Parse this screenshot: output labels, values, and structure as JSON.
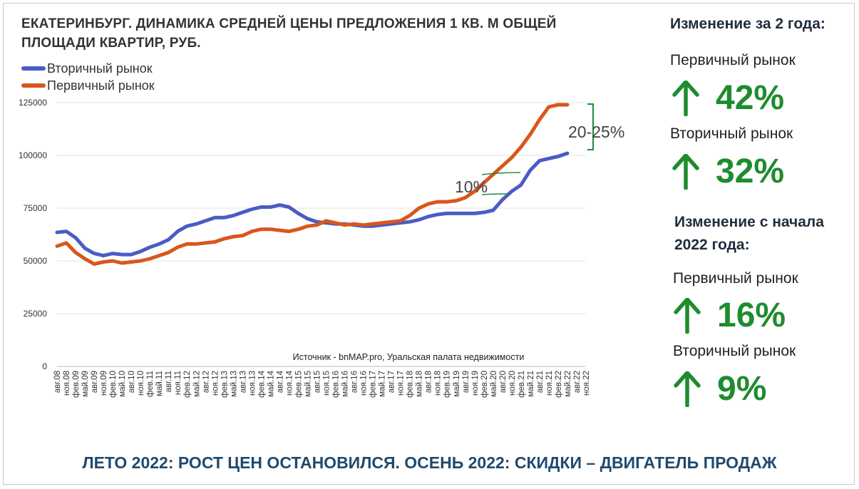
{
  "chart_data": {
    "type": "line",
    "title": "ЕКАТЕРИНБУРГ. ДИНАМИКА СРЕДНЕЙ ЦЕНЫ ПРЕДЛОЖЕНИЯ 1 КВ. М ОБЩЕЙ ПЛОЩАДИ КВАРТИР,  РУБ.",
    "xlabel": "",
    "ylabel": "",
    "ylim": [
      0,
      125000
    ],
    "yticks": [
      0,
      25000,
      50000,
      75000,
      100000,
      125000
    ],
    "grid": true,
    "legend": "top-left",
    "source": "Источник - bnMAP.pro, Уральская палата недвижимости",
    "x_tick_labels": [
      "авг.08",
      "ноя.08",
      "фев.09",
      "май.09",
      "авг.09",
      "ноя.09",
      "фев.10",
      "май.10",
      "авг.10",
      "ноя.10",
      "фев.11",
      "май.11",
      "авг.11",
      "ноя.11",
      "фев.12",
      "май.12",
      "авг.12",
      "ноя.12",
      "фев.13",
      "май.13",
      "авг.13",
      "ноя.13",
      "фев.14",
      "май.14",
      "авг.14",
      "ноя.14",
      "фев.15",
      "май.15",
      "авг.15",
      "ноя.15",
      "фев.16",
      "май.16",
      "авг.16",
      "ноя.16",
      "фев.17",
      "май.17",
      "авг.17",
      "ноя.17",
      "фев.18",
      "май.18",
      "авг.18",
      "ноя.18",
      "фев.19",
      "май.19",
      "авг.19",
      "ноя.19",
      "фев.20",
      "май.20",
      "авг.20",
      "ноя.20",
      "фев.21",
      "май.21",
      "авг.21",
      "ноя.21",
      "фев.22",
      "май.22",
      "авг.22",
      "ноя.22"
    ],
    "series": [
      {
        "name": "Вторичный рынок",
        "color": "#4a5cc4",
        "values": [
          63500,
          64000,
          61000,
          56000,
          53500,
          52500,
          53500,
          53000,
          53000,
          54500,
          56500,
          58000,
          60000,
          64000,
          66500,
          67500,
          69000,
          70500,
          70500,
          71500,
          73000,
          74500,
          75500,
          75500,
          76500,
          75500,
          72500,
          70000,
          68500,
          68000,
          67500,
          67500,
          67000,
          66500,
          66500,
          67000,
          67500,
          68000,
          68500,
          69500,
          71000,
          72000,
          72500,
          72500,
          72500,
          72500,
          73000,
          74000,
          79000,
          83000,
          86000,
          93000,
          97500,
          98500,
          99500,
          101000,
          null,
          null
        ]
      },
      {
        "name": "Первичный рынок",
        "color": "#d9561c",
        "values": [
          57000,
          58500,
          54000,
          51000,
          48500,
          49500,
          50000,
          49000,
          49500,
          50000,
          51000,
          52500,
          54000,
          56500,
          58000,
          58000,
          58500,
          59000,
          60500,
          61500,
          62000,
          64000,
          65000,
          65000,
          64500,
          64000,
          65000,
          66500,
          67000,
          69000,
          68000,
          67000,
          67500,
          67000,
          67500,
          68000,
          68500,
          69000,
          71500,
          75000,
          77000,
          78000,
          78000,
          78500,
          80000,
          83000,
          87000,
          91000,
          95000,
          99000,
          104000,
          110000,
          117000,
          123000,
          124000,
          124000,
          null,
          null
        ]
      }
    ],
    "annotations": [
      {
        "text": "10%"
      },
      {
        "text": "20-25%"
      }
    ]
  },
  "summary": {
    "two_years": {
      "heading": "Изменение за 2 года:",
      "primary_label": "Первичный рынок",
      "primary_value": "42%",
      "secondary_label": "Вторичный рынок",
      "secondary_value": "32%"
    },
    "since_2022": {
      "heading": "Изменение с начала 2022 года:",
      "primary_label": "Первичный рынок",
      "primary_value": "16%",
      "secondary_label": "Вторичный рынок",
      "secondary_value": "9%"
    },
    "accent_color": "#1e8c2e"
  },
  "footer": "ЛЕТО 2022: РОСТ ЦЕН ОСТАНОВИЛСЯ. ОСЕНЬ 2022: СКИДКИ – ДВИГАТЕЛЬ ПРОДАЖ"
}
